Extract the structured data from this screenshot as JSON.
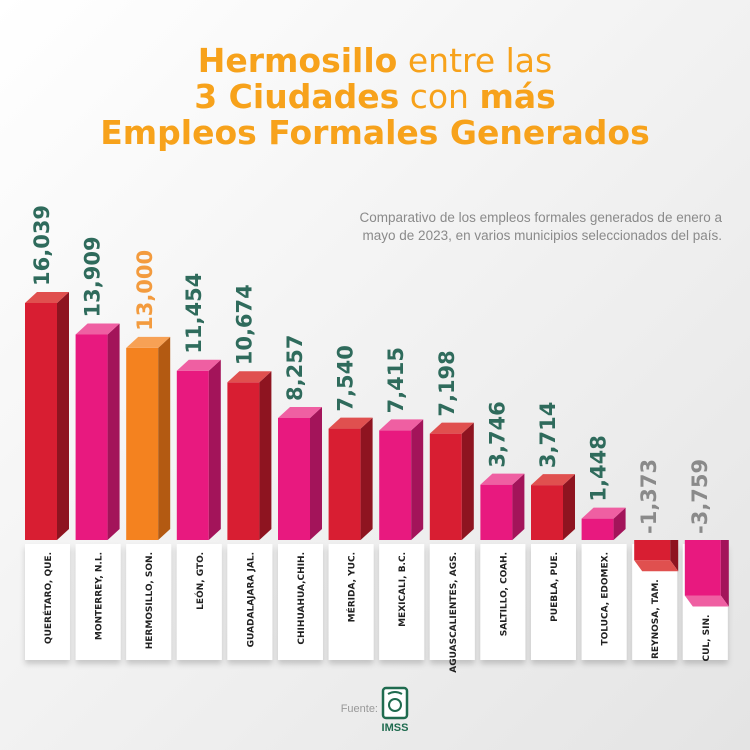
{
  "title": {
    "line1_bold": "Hermosillo",
    "line1_rest": " entre las",
    "line2_bold": "3 Ciudades",
    "line2_mid": " con ",
    "line2_end": "más",
    "line3": "Empleos Formales Generados"
  },
  "subtitle": {
    "line1": "Comparativo de los empleos formales generados de enero a",
    "line2": "mayo de 2023, en varios municipios seleccionados del país."
  },
  "source": {
    "label": "Fuente:",
    "logo_text": "IMSS"
  },
  "colors": {
    "red": "#d81e32",
    "pink": "#e8197f",
    "orange": "#f4821f",
    "title": "#f7a21b",
    "value": "#2f6b5c",
    "highlight_value": "#f39b3e",
    "negative_value": "#8a8a8a"
  },
  "chart_data": {
    "type": "bar",
    "title": "Hermosillo entre las 3 Ciudades con más Empleos Formales Generados",
    "categories": [
      "QUERÉTARO, QUE.",
      "MONTERREY, N.L.",
      "HERMOSILLO, SON.",
      "LEÓN, GTO.",
      "GUADALAJARA JAL.",
      "CHIHUAHUA,CHIH.",
      "MÉRIDA, YUC.",
      "MEXICALI, B.C.",
      "AGUASCALIENTES, AGS.",
      "SALTILLO, COAH.",
      "PUEBLA, PUE.",
      "TOLUCA, EDOMEX.",
      "REYNOSA, TAM.",
      "CUL, SIN."
    ],
    "values": [
      16039,
      13909,
      13000,
      11454,
      10674,
      8257,
      7540,
      7415,
      7198,
      3746,
      3714,
      1448,
      -1373,
      -3759
    ],
    "value_labels": [
      "16,039",
      "13,909",
      "13,000",
      "11,454",
      "10,674",
      "8,257",
      "7,540",
      "7,415",
      "7,198",
      "3,746",
      "3,714",
      "1,448",
      "-1,373",
      "-3,759"
    ],
    "bar_colors": [
      "red",
      "pink",
      "orange",
      "pink",
      "red",
      "pink",
      "red",
      "pink",
      "red",
      "pink",
      "red",
      "pink",
      "red",
      "pink"
    ],
    "highlight": "HERMOSILLO, SON.",
    "style": "3d",
    "grid": false
  }
}
